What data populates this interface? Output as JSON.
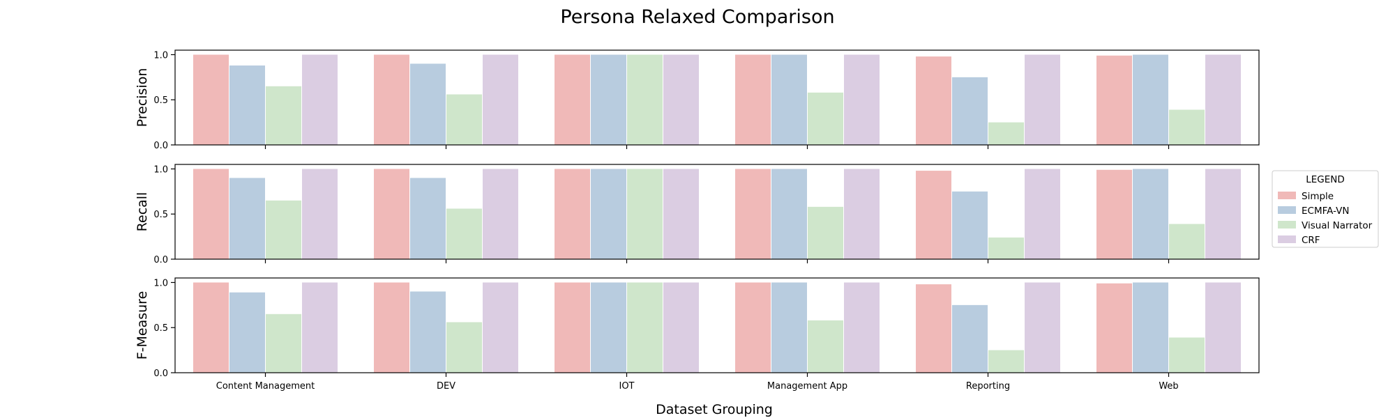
{
  "chart_data": {
    "type": "bar",
    "title": "Persona Relaxed Comparison",
    "xlabel": "Dataset Grouping",
    "categories": [
      "Content Management",
      "DEV",
      "IOT",
      "Management App",
      "Reporting",
      "Web"
    ],
    "ylim": [
      0,
      1.05
    ],
    "yticks": [
      "0.0",
      "0.5",
      "1.0"
    ],
    "legend": {
      "title": "LEGEND",
      "placement": "right"
    },
    "colors": {
      "Simple": "#f0b9b8",
      "ECMFA-VN": "#b8ccdf",
      "Visual Narrator": "#cfe6cb",
      "CRF": "#dbcde2"
    },
    "series_names": [
      "Simple",
      "ECMFA-VN",
      "Visual Narrator",
      "CRF"
    ],
    "subplots": [
      {
        "ylabel": "Precision",
        "series": [
          {
            "name": "Simple",
            "values": [
              1.0,
              1.0,
              1.0,
              1.0,
              0.98,
              0.99
            ]
          },
          {
            "name": "ECMFA-VN",
            "values": [
              0.88,
              0.9,
              1.0,
              1.0,
              0.75,
              1.0
            ]
          },
          {
            "name": "Visual Narrator",
            "values": [
              0.65,
              0.56,
              1.0,
              0.58,
              0.25,
              0.39
            ]
          },
          {
            "name": "CRF",
            "values": [
              1.0,
              1.0,
              1.0,
              1.0,
              1.0,
              1.0
            ]
          }
        ]
      },
      {
        "ylabel": "Recall",
        "series": [
          {
            "name": "Simple",
            "values": [
              1.0,
              1.0,
              1.0,
              1.0,
              0.98,
              0.99
            ]
          },
          {
            "name": "ECMFA-VN",
            "values": [
              0.9,
              0.9,
              1.0,
              1.0,
              0.75,
              1.0
            ]
          },
          {
            "name": "Visual Narrator",
            "values": [
              0.65,
              0.56,
              1.0,
              0.58,
              0.24,
              0.39
            ]
          },
          {
            "name": "CRF",
            "values": [
              1.0,
              1.0,
              1.0,
              1.0,
              1.0,
              1.0
            ]
          }
        ]
      },
      {
        "ylabel": "F-Measure",
        "series": [
          {
            "name": "Simple",
            "values": [
              1.0,
              1.0,
              1.0,
              1.0,
              0.98,
              0.99
            ]
          },
          {
            "name": "ECMFA-VN",
            "values": [
              0.89,
              0.9,
              1.0,
              1.0,
              0.75,
              1.0
            ]
          },
          {
            "name": "Visual Narrator",
            "values": [
              0.65,
              0.56,
              1.0,
              0.58,
              0.25,
              0.39
            ]
          },
          {
            "name": "CRF",
            "values": [
              1.0,
              1.0,
              1.0,
              1.0,
              1.0,
              1.0
            ]
          }
        ]
      }
    ]
  }
}
